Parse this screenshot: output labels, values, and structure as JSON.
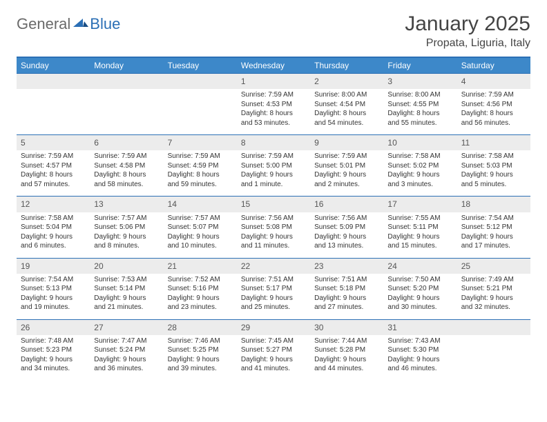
{
  "logo": {
    "general": "General",
    "blue": "Blue"
  },
  "title": "January 2025",
  "location": "Propata, Liguria, Italy",
  "colors": {
    "header_bg": "#3d88c9",
    "border": "#2b6fb5",
    "daynum_bg": "#ececec",
    "text": "#333333"
  },
  "dayHeaders": [
    "Sunday",
    "Monday",
    "Tuesday",
    "Wednesday",
    "Thursday",
    "Friday",
    "Saturday"
  ],
  "weeks": [
    [
      {
        "num": "",
        "info": ""
      },
      {
        "num": "",
        "info": ""
      },
      {
        "num": "",
        "info": ""
      },
      {
        "num": "1",
        "info": "Sunrise: 7:59 AM\nSunset: 4:53 PM\nDaylight: 8 hours and 53 minutes."
      },
      {
        "num": "2",
        "info": "Sunrise: 8:00 AM\nSunset: 4:54 PM\nDaylight: 8 hours and 54 minutes."
      },
      {
        "num": "3",
        "info": "Sunrise: 8:00 AM\nSunset: 4:55 PM\nDaylight: 8 hours and 55 minutes."
      },
      {
        "num": "4",
        "info": "Sunrise: 7:59 AM\nSunset: 4:56 PM\nDaylight: 8 hours and 56 minutes."
      }
    ],
    [
      {
        "num": "5",
        "info": "Sunrise: 7:59 AM\nSunset: 4:57 PM\nDaylight: 8 hours and 57 minutes."
      },
      {
        "num": "6",
        "info": "Sunrise: 7:59 AM\nSunset: 4:58 PM\nDaylight: 8 hours and 58 minutes."
      },
      {
        "num": "7",
        "info": "Sunrise: 7:59 AM\nSunset: 4:59 PM\nDaylight: 8 hours and 59 minutes."
      },
      {
        "num": "8",
        "info": "Sunrise: 7:59 AM\nSunset: 5:00 PM\nDaylight: 9 hours and 1 minute."
      },
      {
        "num": "9",
        "info": "Sunrise: 7:59 AM\nSunset: 5:01 PM\nDaylight: 9 hours and 2 minutes."
      },
      {
        "num": "10",
        "info": "Sunrise: 7:58 AM\nSunset: 5:02 PM\nDaylight: 9 hours and 3 minutes."
      },
      {
        "num": "11",
        "info": "Sunrise: 7:58 AM\nSunset: 5:03 PM\nDaylight: 9 hours and 5 minutes."
      }
    ],
    [
      {
        "num": "12",
        "info": "Sunrise: 7:58 AM\nSunset: 5:04 PM\nDaylight: 9 hours and 6 minutes."
      },
      {
        "num": "13",
        "info": "Sunrise: 7:57 AM\nSunset: 5:06 PM\nDaylight: 9 hours and 8 minutes."
      },
      {
        "num": "14",
        "info": "Sunrise: 7:57 AM\nSunset: 5:07 PM\nDaylight: 9 hours and 10 minutes."
      },
      {
        "num": "15",
        "info": "Sunrise: 7:56 AM\nSunset: 5:08 PM\nDaylight: 9 hours and 11 minutes."
      },
      {
        "num": "16",
        "info": "Sunrise: 7:56 AM\nSunset: 5:09 PM\nDaylight: 9 hours and 13 minutes."
      },
      {
        "num": "17",
        "info": "Sunrise: 7:55 AM\nSunset: 5:11 PM\nDaylight: 9 hours and 15 minutes."
      },
      {
        "num": "18",
        "info": "Sunrise: 7:54 AM\nSunset: 5:12 PM\nDaylight: 9 hours and 17 minutes."
      }
    ],
    [
      {
        "num": "19",
        "info": "Sunrise: 7:54 AM\nSunset: 5:13 PM\nDaylight: 9 hours and 19 minutes."
      },
      {
        "num": "20",
        "info": "Sunrise: 7:53 AM\nSunset: 5:14 PM\nDaylight: 9 hours and 21 minutes."
      },
      {
        "num": "21",
        "info": "Sunrise: 7:52 AM\nSunset: 5:16 PM\nDaylight: 9 hours and 23 minutes."
      },
      {
        "num": "22",
        "info": "Sunrise: 7:51 AM\nSunset: 5:17 PM\nDaylight: 9 hours and 25 minutes."
      },
      {
        "num": "23",
        "info": "Sunrise: 7:51 AM\nSunset: 5:18 PM\nDaylight: 9 hours and 27 minutes."
      },
      {
        "num": "24",
        "info": "Sunrise: 7:50 AM\nSunset: 5:20 PM\nDaylight: 9 hours and 30 minutes."
      },
      {
        "num": "25",
        "info": "Sunrise: 7:49 AM\nSunset: 5:21 PM\nDaylight: 9 hours and 32 minutes."
      }
    ],
    [
      {
        "num": "26",
        "info": "Sunrise: 7:48 AM\nSunset: 5:23 PM\nDaylight: 9 hours and 34 minutes."
      },
      {
        "num": "27",
        "info": "Sunrise: 7:47 AM\nSunset: 5:24 PM\nDaylight: 9 hours and 36 minutes."
      },
      {
        "num": "28",
        "info": "Sunrise: 7:46 AM\nSunset: 5:25 PM\nDaylight: 9 hours and 39 minutes."
      },
      {
        "num": "29",
        "info": "Sunrise: 7:45 AM\nSunset: 5:27 PM\nDaylight: 9 hours and 41 minutes."
      },
      {
        "num": "30",
        "info": "Sunrise: 7:44 AM\nSunset: 5:28 PM\nDaylight: 9 hours and 44 minutes."
      },
      {
        "num": "31",
        "info": "Sunrise: 7:43 AM\nSunset: 5:30 PM\nDaylight: 9 hours and 46 minutes."
      },
      {
        "num": "",
        "info": ""
      }
    ]
  ]
}
